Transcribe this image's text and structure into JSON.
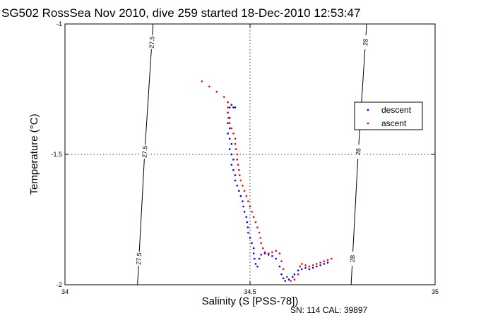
{
  "chart_data": {
    "type": "scatter",
    "title": "SG502 RossSea Nov 2010, dive 259 started 18-Dec-2010 12:53:47",
    "xlabel": "Salinity (S [PSS-78])",
    "ylabel": "Temperature (°C)",
    "xlim": [
      34,
      35
    ],
    "ylim": [
      -2,
      -1
    ],
    "xticks": [
      "34",
      "34.5",
      "35"
    ],
    "yticks": [
      "-2",
      "-1.5",
      "-1"
    ],
    "grid": true,
    "legend_position": "right",
    "footnote": "SN: 114  CAL: 39897",
    "isopycnals": [
      {
        "label": "27.5",
        "points": [
          [
            34.238,
            -1.0
          ],
          [
            34.215,
            -1.5
          ],
          [
            34.196,
            -2.0
          ]
        ]
      },
      {
        "label": "28",
        "points": [
          [
            34.815,
            -1.0
          ],
          [
            34.792,
            -1.5
          ],
          [
            34.773,
            -2.0
          ]
        ]
      }
    ],
    "series": [
      {
        "name": "descent",
        "color": "#0000ff",
        "points": [
          [
            34.44,
            -1.3
          ],
          [
            34.445,
            -1.32
          ],
          [
            34.45,
            -1.31
          ],
          [
            34.455,
            -1.32
          ],
          [
            34.46,
            -1.32
          ],
          [
            34.44,
            -1.34
          ],
          [
            34.445,
            -1.36
          ],
          [
            34.44,
            -1.38
          ],
          [
            34.445,
            -1.4
          ],
          [
            34.44,
            -1.42
          ],
          [
            34.445,
            -1.44
          ],
          [
            34.45,
            -1.46
          ],
          [
            34.445,
            -1.48
          ],
          [
            34.45,
            -1.5
          ],
          [
            34.455,
            -1.52
          ],
          [
            34.45,
            -1.54
          ],
          [
            34.455,
            -1.56
          ],
          [
            34.46,
            -1.58
          ],
          [
            34.46,
            -1.6
          ],
          [
            34.465,
            -1.62
          ],
          [
            34.47,
            -1.64
          ],
          [
            34.475,
            -1.66
          ],
          [
            34.48,
            -1.68
          ],
          [
            34.482,
            -1.7
          ],
          [
            34.485,
            -1.72
          ],
          [
            34.49,
            -1.74
          ],
          [
            34.492,
            -1.76
          ],
          [
            34.494,
            -1.78
          ],
          [
            34.495,
            -1.8
          ],
          [
            34.5,
            -1.82
          ],
          [
            34.505,
            -1.84
          ],
          [
            34.51,
            -1.86
          ],
          [
            34.51,
            -1.88
          ],
          [
            34.512,
            -1.9
          ],
          [
            34.515,
            -1.92
          ],
          [
            34.52,
            -1.93
          ],
          [
            34.525,
            -1.9
          ],
          [
            34.53,
            -1.885
          ],
          [
            34.54,
            -1.88
          ],
          [
            34.55,
            -1.885
          ],
          [
            34.56,
            -1.89
          ],
          [
            34.57,
            -1.9
          ],
          [
            34.58,
            -1.93
          ],
          [
            34.585,
            -1.96
          ],
          [
            34.59,
            -1.975
          ],
          [
            34.595,
            -1.985
          ],
          [
            34.605,
            -1.98
          ],
          [
            34.615,
            -1.97
          ],
          [
            34.62,
            -1.96
          ],
          [
            34.63,
            -1.945
          ],
          [
            34.64,
            -1.94
          ],
          [
            34.65,
            -1.935
          ],
          [
            34.66,
            -1.94
          ],
          [
            34.67,
            -1.935
          ],
          [
            34.68,
            -1.93
          ],
          [
            34.69,
            -1.925
          ],
          [
            34.7,
            -1.92
          ],
          [
            34.71,
            -1.915
          ]
        ]
      },
      {
        "name": "ascent",
        "color": "#ff0000",
        "points": [
          [
            34.37,
            -1.22
          ],
          [
            34.39,
            -1.24
          ],
          [
            34.41,
            -1.26
          ],
          [
            34.43,
            -1.28
          ],
          [
            34.44,
            -1.3
          ],
          [
            34.44,
            -1.32
          ],
          [
            34.44,
            -1.34
          ],
          [
            34.442,
            -1.36
          ],
          [
            34.445,
            -1.38
          ],
          [
            34.45,
            -1.4
          ],
          [
            34.455,
            -1.42
          ],
          [
            34.46,
            -1.44
          ],
          [
            34.46,
            -1.46
          ],
          [
            34.462,
            -1.48
          ],
          [
            34.465,
            -1.5
          ],
          [
            34.465,
            -1.52
          ],
          [
            34.468,
            -1.54
          ],
          [
            34.47,
            -1.56
          ],
          [
            34.472,
            -1.58
          ],
          [
            34.475,
            -1.6
          ],
          [
            34.48,
            -1.62
          ],
          [
            34.485,
            -1.64
          ],
          [
            34.49,
            -1.66
          ],
          [
            34.495,
            -1.68
          ],
          [
            34.5,
            -1.7
          ],
          [
            34.505,
            -1.72
          ],
          [
            34.51,
            -1.74
          ],
          [
            34.515,
            -1.76
          ],
          [
            34.52,
            -1.78
          ],
          [
            34.525,
            -1.8
          ],
          [
            34.528,
            -1.82
          ],
          [
            34.53,
            -1.84
          ],
          [
            34.535,
            -1.86
          ],
          [
            34.54,
            -1.875
          ],
          [
            34.55,
            -1.88
          ],
          [
            34.56,
            -1.875
          ],
          [
            34.57,
            -1.87
          ],
          [
            34.58,
            -1.88
          ],
          [
            34.585,
            -1.91
          ],
          [
            34.59,
            -1.94
          ],
          [
            34.6,
            -1.97
          ],
          [
            34.61,
            -1.985
          ],
          [
            34.62,
            -1.98
          ],
          [
            34.63,
            -1.96
          ],
          [
            34.635,
            -1.93
          ],
          [
            34.64,
            -1.92
          ],
          [
            34.65,
            -1.925
          ],
          [
            34.66,
            -1.93
          ],
          [
            34.67,
            -1.925
          ],
          [
            34.68,
            -1.92
          ],
          [
            34.69,
            -1.915
          ],
          [
            34.7,
            -1.91
          ],
          [
            34.71,
            -1.905
          ],
          [
            34.72,
            -1.9
          ]
        ]
      }
    ]
  }
}
